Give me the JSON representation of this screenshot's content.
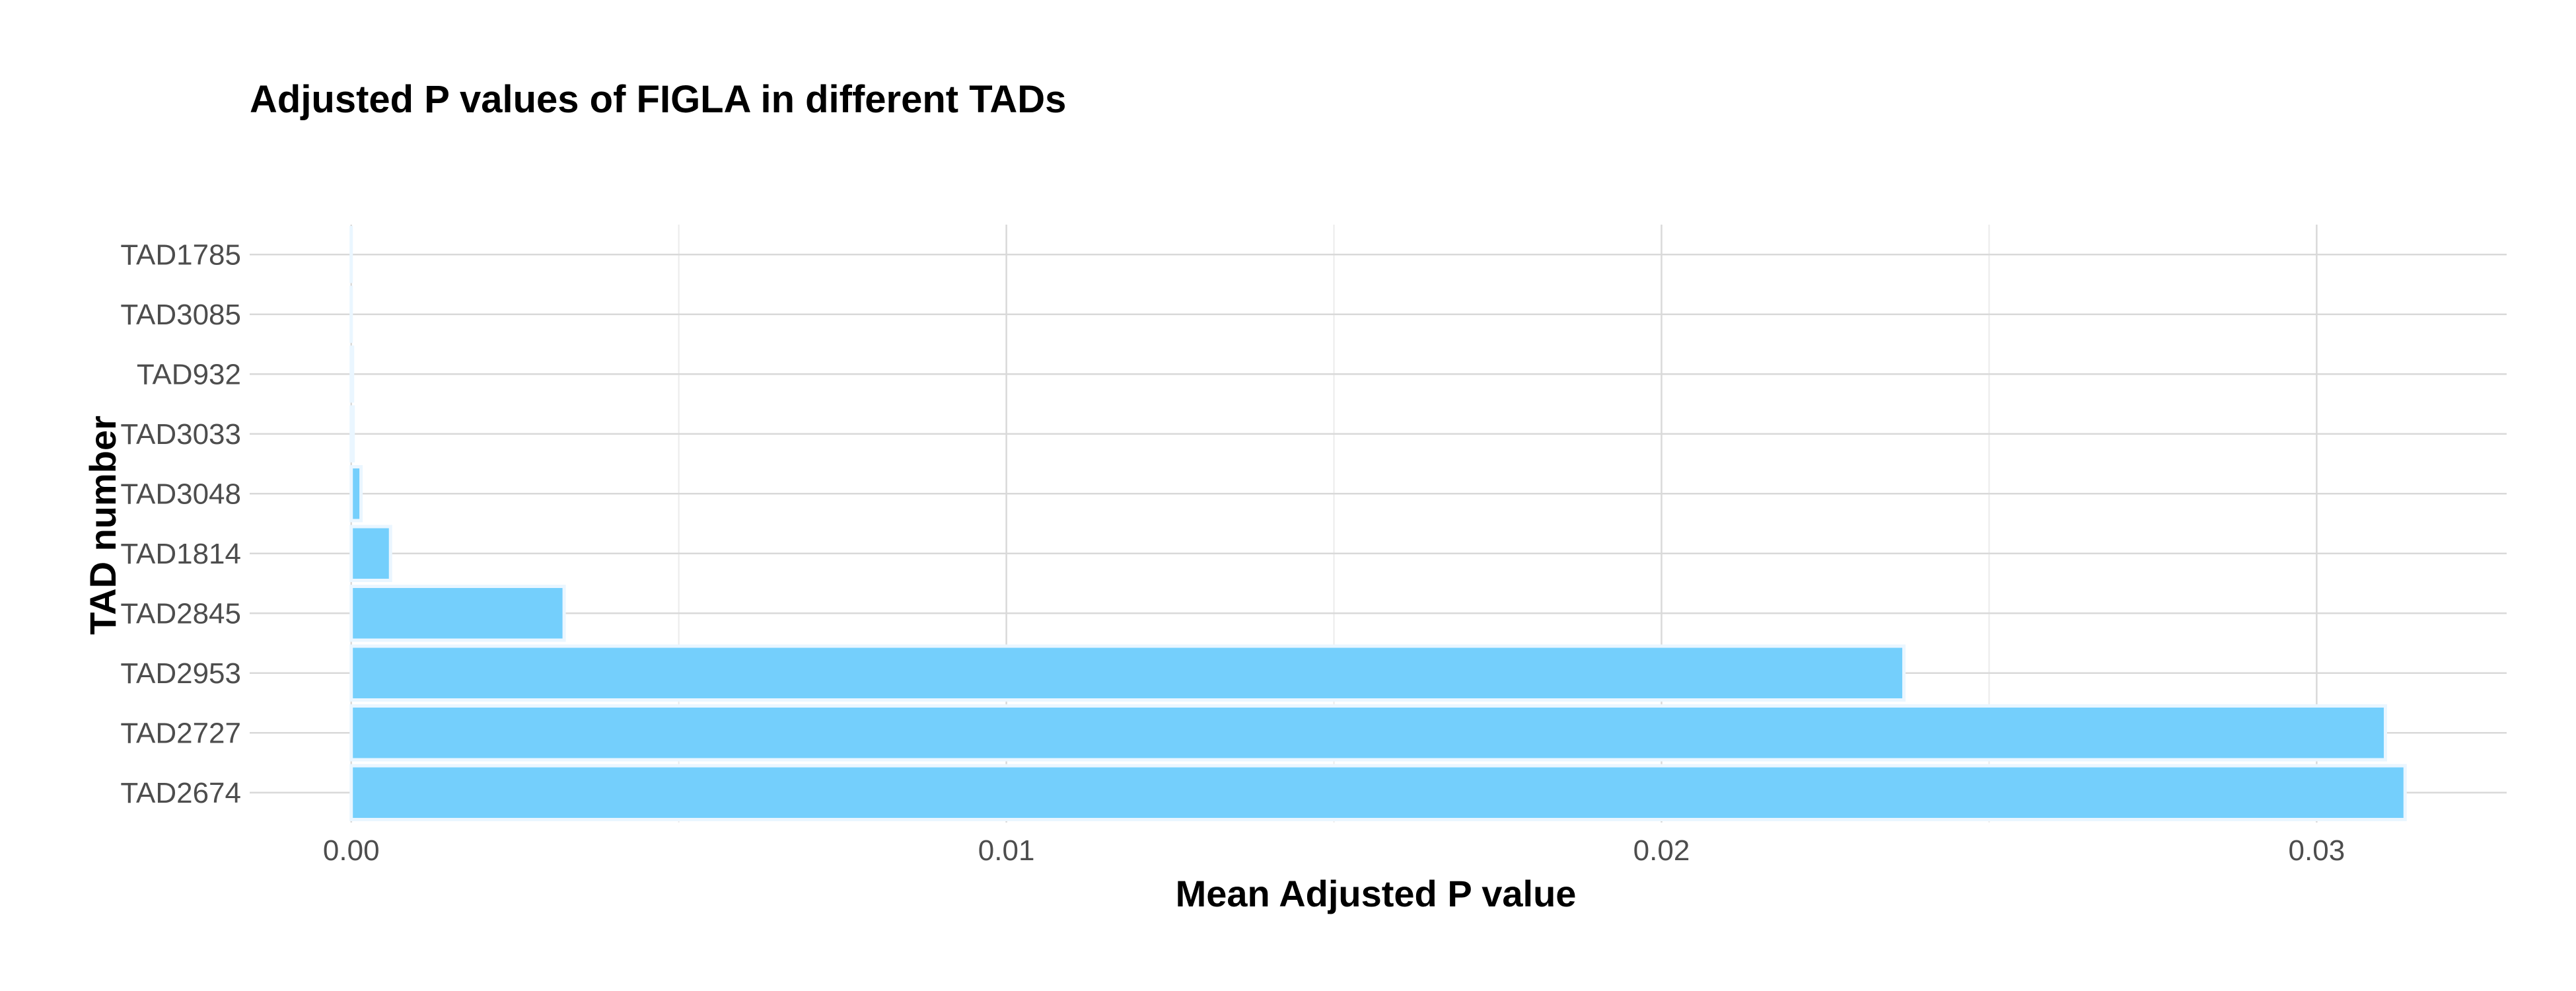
{
  "chart_data": {
    "type": "bar",
    "orientation": "horizontal",
    "title": "Adjusted P values of FIGLA in different TADs",
    "xlabel": "Mean Adjusted P value",
    "ylabel": "TAD number",
    "categories": [
      "TAD2674",
      "TAD2727",
      "TAD2953",
      "TAD2845",
      "TAD1814",
      "TAD3048",
      "TAD3033",
      "TAD932",
      "TAD3085",
      "TAD1785"
    ],
    "values": [
      0.03135,
      0.03105,
      0.0237,
      0.00325,
      0.0006,
      0.00015,
      3e-05,
      2e-05,
      5e-07,
      1e-07
    ],
    "xlim": [
      -0.00155,
      0.0329
    ],
    "xticks": [
      0.0,
      0.01,
      0.02,
      0.03
    ],
    "xtick_labels": [
      "0.00",
      "0.01",
      "0.02",
      "0.03"
    ],
    "bar_color": "#74cffc",
    "grid": true,
    "legend": "none"
  }
}
